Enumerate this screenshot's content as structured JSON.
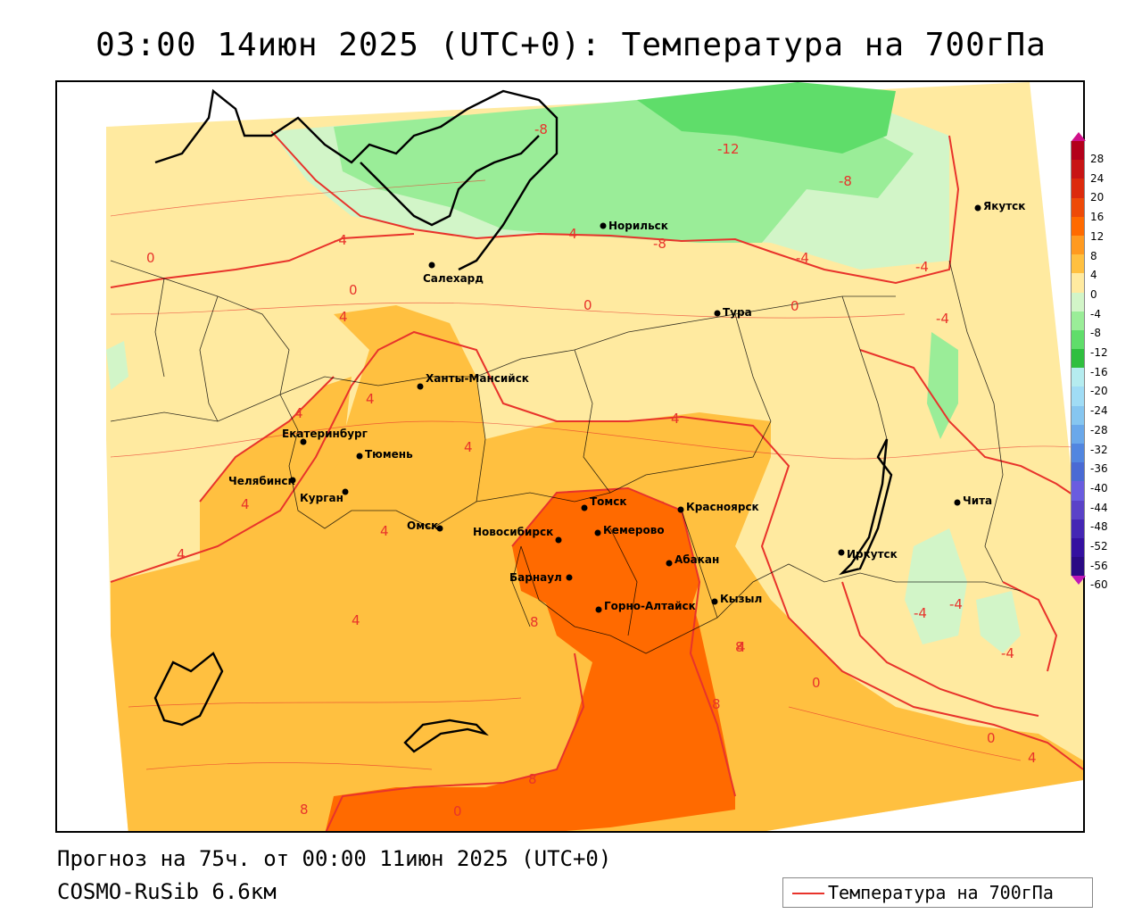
{
  "title": "03:00 14июн 2025 (UTC+0): Температура на 700гПа",
  "forecast": "Прогноз на 75ч. от 00:00 11июн 2025 (UTC+0)",
  "model": "COSMO-RuSib 6.6км",
  "legend": {
    "label": "Температура на 700гПа",
    "line_color": "#e8332b"
  },
  "colorbar": {
    "labels": [
      "28",
      "24",
      "20",
      "16",
      "12",
      "8",
      "4",
      "0",
      "-4",
      "-8",
      "-12",
      "-16",
      "-20",
      "-24",
      "-28",
      "-32",
      "-36",
      "-40",
      "-44",
      "-48",
      "-52",
      "-56",
      "-60"
    ],
    "colors": [
      "#b3001b",
      "#c81414",
      "#dc2a0c",
      "#ee4a08",
      "#ff6a00",
      "#ff9a20",
      "#ffc040",
      "#ffeaa0",
      "#d2f5c8",
      "#9aed98",
      "#5fdd6a",
      "#2fbf3f",
      "#b5ecef",
      "#a0dcf5",
      "#86c6f0",
      "#6aa8ea",
      "#5286e0",
      "#4a6ad4",
      "#6a5ce0",
      "#5a42c8",
      "#4426b4",
      "#3410a0",
      "#2a0a84"
    ]
  },
  "cities": [
    {
      "name": "Салехард"
    },
    {
      "name": "Норильск"
    },
    {
      "name": "Якутск"
    },
    {
      "name": "Тура"
    },
    {
      "name": "Ханты-Мансийск"
    },
    {
      "name": "Екатеринбург"
    },
    {
      "name": "Тюмень"
    },
    {
      "name": "Челябинск"
    },
    {
      "name": "Курган"
    },
    {
      "name": "Омск"
    },
    {
      "name": "Новосибирск"
    },
    {
      "name": "Томск"
    },
    {
      "name": "Кемерово"
    },
    {
      "name": "Красноярск"
    },
    {
      "name": "Абакан"
    },
    {
      "name": "Барнаул"
    },
    {
      "name": "Горно-Алтайск"
    },
    {
      "name": "Кызыл"
    },
    {
      "name": "Иркутск"
    },
    {
      "name": "Чита"
    }
  ],
  "isotherm_labels": [
    "-8",
    "-12",
    "-8",
    "-4",
    "-4",
    "-8",
    "-4",
    "-4",
    "-4",
    "0",
    "0",
    "0",
    "0",
    "4",
    "4",
    "4",
    "4",
    "4",
    "4",
    "4",
    "4",
    "4",
    "8",
    "8",
    "8",
    "8",
    "8",
    "0",
    "-4",
    "-4",
    "-4",
    "0",
    "4",
    "0",
    "4"
  ]
}
